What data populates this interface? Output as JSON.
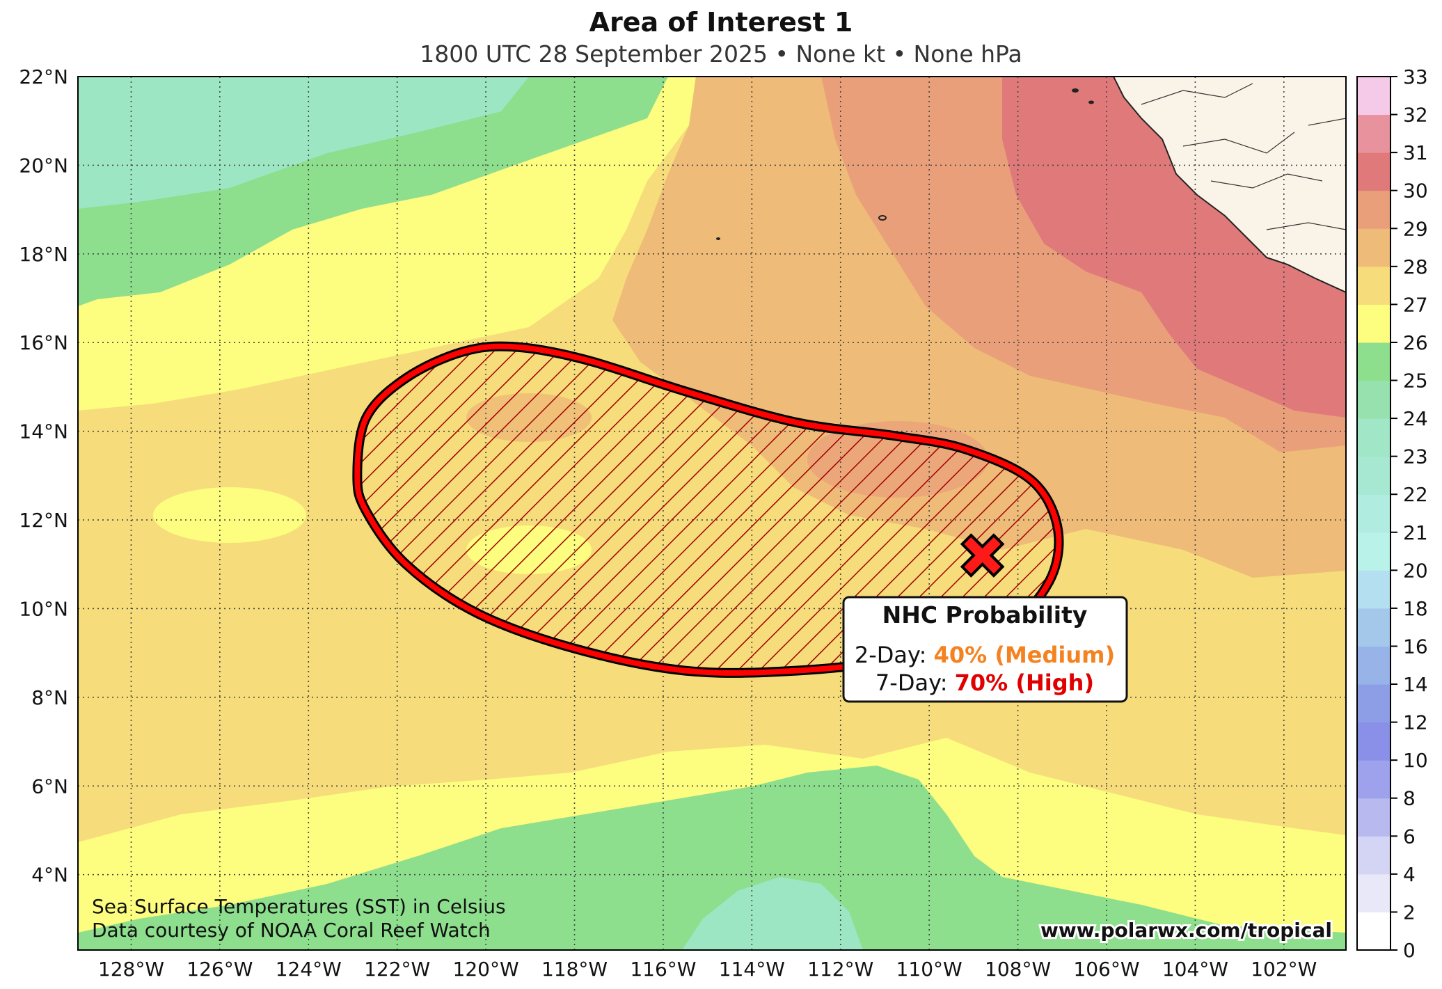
{
  "header": {
    "title": "Area of Interest 1",
    "subtitle": "1800 UTC 28 September 2025 • None kt • None hPa"
  },
  "map": {
    "extent": {
      "lon_min": -129.2,
      "lon_max": -100.6,
      "lat_min": 2.3,
      "lat_max": 22.0
    },
    "lat_ticks": [
      4,
      6,
      8,
      10,
      12,
      14,
      16,
      18,
      20,
      22
    ],
    "lon_ticks": [
      -128,
      -126,
      -124,
      -122,
      -120,
      -118,
      -116,
      -114,
      -112,
      -110,
      -108,
      -106,
      -104,
      -102
    ],
    "lat_labels": [
      "4°N",
      "6°N",
      "8°N",
      "10°N",
      "12°N",
      "14°N",
      "16°N",
      "18°N",
      "20°N",
      "22°N"
    ],
    "lon_labels": [
      "128°W",
      "126°W",
      "124°W",
      "122°W",
      "120°W",
      "118°W",
      "116°W",
      "114°W",
      "112°W",
      "110°W",
      "108°W",
      "106°W",
      "104°W",
      "102°W"
    ],
    "sst_colors": {
      "c23": "#9de6c4",
      "c24": "#a6e8c0",
      "c25": "#8ddf8e",
      "c26": "#fdfd7f",
      "c27": "#f6dc7a",
      "c28": "#efbb78",
      "c29": "#e9a07a",
      "c30": "#e07a7a",
      "land": "#faf3e7"
    },
    "area_of_interest": {
      "outline_color": "#ff0000",
      "hatch_color": "#a00000",
      "polygon_lonlat": [
        [
          -122.9,
          13.0
        ],
        [
          -122.7,
          14.3
        ],
        [
          -121.8,
          15.2
        ],
        [
          -120.5,
          15.8
        ],
        [
          -119.3,
          15.9
        ],
        [
          -117.7,
          15.6
        ],
        [
          -115.5,
          14.9
        ],
        [
          -113.0,
          14.2
        ],
        [
          -110.8,
          13.9
        ],
        [
          -109.2,
          13.6
        ],
        [
          -107.7,
          12.9
        ],
        [
          -107.1,
          11.8
        ],
        [
          -107.3,
          10.6
        ],
        [
          -108.3,
          9.6
        ],
        [
          -110.5,
          8.9
        ],
        [
          -113.0,
          8.6
        ],
        [
          -115.5,
          8.6
        ],
        [
          -118.0,
          9.1
        ],
        [
          -120.2,
          9.9
        ],
        [
          -121.8,
          11.0
        ],
        [
          -122.7,
          12.2
        ]
      ],
      "center_lonlat": [
        -108.8,
        11.2
      ],
      "marker_color": "#ff1a1a"
    }
  },
  "probability_box": {
    "heading": "NHC Probability",
    "two_day_label": "2-Day: ",
    "two_day_value": "40% (Medium)",
    "two_day_color": "#f58220",
    "seven_day_label": "7-Day: ",
    "seven_day_value": "70% (High)",
    "seven_day_color": "#e00000"
  },
  "credits": {
    "line1": "Sea Surface Temperatures (SST) in Celsius",
    "line2": "Data courtesy of NOAA Coral Reef Watch",
    "website": "www.polarwx.com/tropical"
  },
  "colorbar": {
    "ticks": [
      0,
      2,
      4,
      6,
      8,
      10,
      12,
      14,
      16,
      18,
      20,
      21,
      22,
      23,
      24,
      25,
      26,
      27,
      28,
      29,
      30,
      31,
      32,
      33
    ],
    "colors": [
      "#ffffff",
      "#e8e8f8",
      "#d4d4f4",
      "#b7b9ef",
      "#9ea2ec",
      "#8a8fe8",
      "#8e9ee6",
      "#97b3e8",
      "#a4c8ea",
      "#b4dff0",
      "#b8f2e8",
      "#b0ece0",
      "#a6e8d2",
      "#a2e6c8",
      "#96e1ad",
      "#8ddf8e",
      "#fdfd7f",
      "#f6dc7a",
      "#efbb78",
      "#e9a07a",
      "#e07a7a",
      "#e8929e",
      "#f5c9e8"
    ]
  }
}
